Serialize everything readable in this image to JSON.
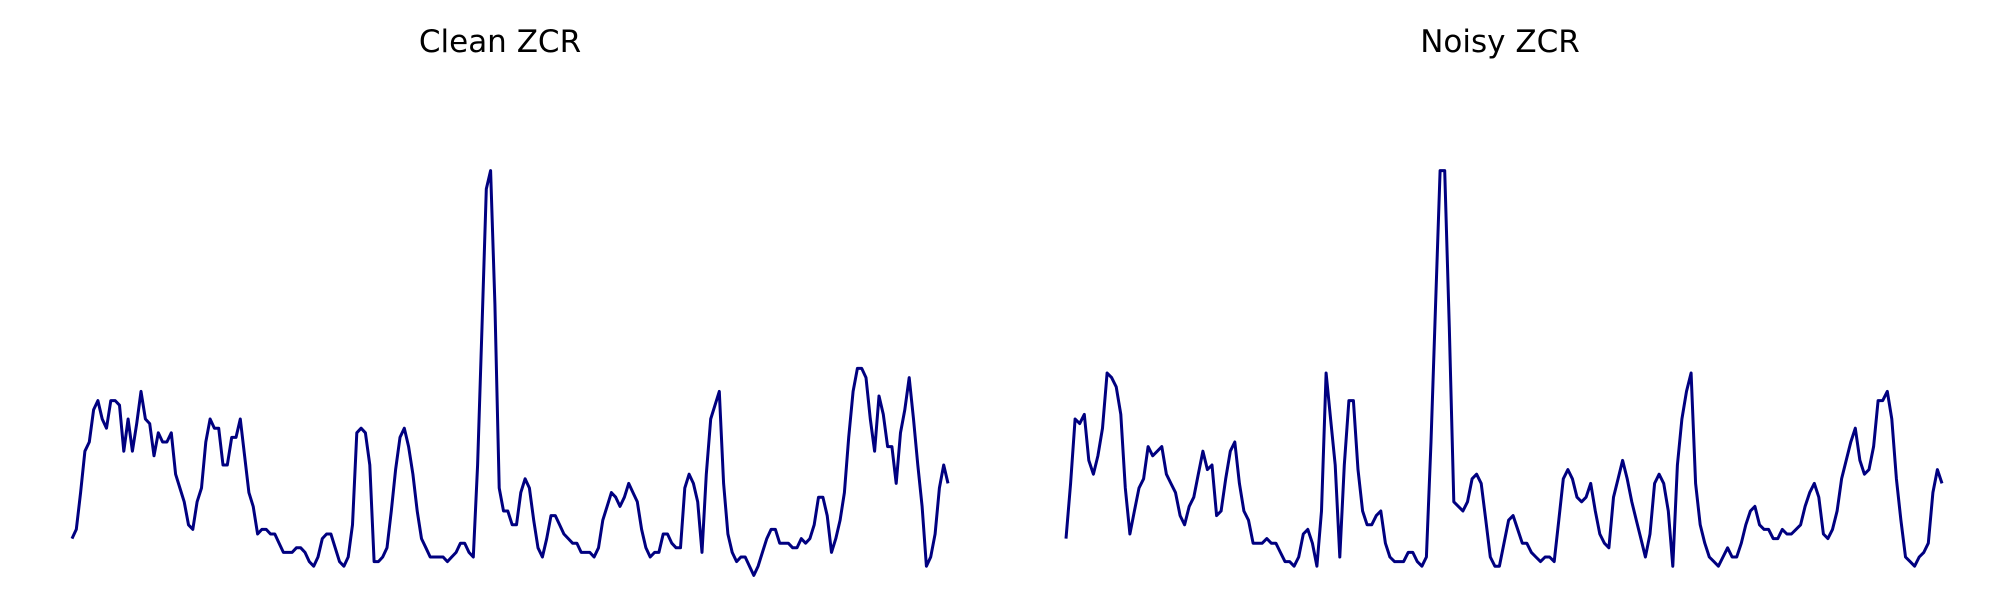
{
  "chart_data": [
    {
      "type": "line",
      "title": "Clean ZCR",
      "xlabel": "",
      "ylabel": "",
      "axes_visible": false,
      "grid": false,
      "color": "#000080",
      "ylim": [
        0,
        100
      ],
      "series": [
        {
          "values": [
            4,
            6,
            14,
            23,
            25,
            32,
            34,
            30,
            28,
            34,
            34,
            33,
            23,
            30,
            23,
            29,
            36,
            30,
            29,
            22,
            27,
            25,
            25,
            27,
            18,
            15,
            12,
            7,
            6,
            12,
            15,
            25,
            30,
            28,
            28,
            20,
            20,
            26,
            26,
            30,
            22,
            14,
            11,
            5,
            6,
            6,
            5,
            5,
            3,
            1,
            1,
            1,
            2,
            2,
            1,
            -1,
            -2,
            0,
            4,
            5,
            5,
            2,
            -1,
            -2,
            0,
            7,
            27,
            28,
            27,
            20,
            -1,
            -1,
            0,
            2,
            10,
            19,
            26,
            28,
            24,
            18,
            10,
            4,
            2,
            0,
            0,
            0,
            0,
            -1,
            0,
            1,
            3,
            3,
            1,
            0,
            20,
            50,
            80,
            84,
            55,
            15,
            10,
            10,
            7,
            7,
            14,
            17,
            15,
            8,
            2,
            0,
            4,
            9,
            9,
            7,
            5,
            4,
            3,
            3,
            1,
            1,
            1,
            0,
            2,
            8,
            11,
            14,
            13,
            11,
            13,
            16,
            14,
            12,
            6,
            2,
            0,
            1,
            1,
            5,
            5,
            3,
            2,
            2,
            15,
            18,
            16,
            12,
            1,
            18,
            30,
            33,
            36,
            16,
            5,
            1,
            -1,
            0,
            0,
            -2,
            -4,
            -2,
            1,
            4,
            6,
            6,
            3,
            3,
            3,
            2,
            2,
            4,
            3,
            4,
            7,
            13,
            13,
            9,
            1,
            4,
            8,
            14,
            26,
            36,
            41,
            41,
            39,
            30,
            23,
            35,
            31,
            24,
            24,
            16,
            27,
            32,
            39,
            30,
            20,
            11,
            -2,
            0,
            5,
            15,
            20,
            16
          ]
        }
      ]
    },
    {
      "type": "line",
      "title": "Noisy ZCR",
      "xlabel": "",
      "ylabel": "",
      "axes_visible": false,
      "grid": false,
      "color": "#000080",
      "ylim": [
        0,
        100
      ],
      "series": [
        {
          "values": [
            4,
            16,
            30,
            29,
            31,
            21,
            18,
            22,
            28,
            40,
            39,
            37,
            31,
            15,
            5,
            10,
            15,
            17,
            24,
            22,
            23,
            24,
            18,
            16,
            14,
            9,
            7,
            11,
            13,
            18,
            23,
            19,
            20,
            9,
            10,
            17,
            23,
            25,
            16,
            10,
            8,
            3,
            3,
            3,
            4,
            3,
            3,
            1,
            -1,
            -1,
            -2,
            0,
            5,
            6,
            3,
            -2,
            10,
            40,
            30,
            20,
            0,
            20,
            34,
            34,
            19,
            10,
            7,
            7,
            9,
            10,
            3,
            0,
            -1,
            -1,
            -1,
            1,
            1,
            -1,
            -2,
            0,
            25,
            55,
            84,
            84,
            50,
            12,
            11,
            10,
            12,
            17,
            18,
            16,
            8,
            0,
            -2,
            -2,
            3,
            8,
            9,
            6,
            3,
            3,
            1,
            0,
            -1,
            0,
            0,
            -1,
            8,
            17,
            19,
            17,
            13,
            12,
            13,
            16,
            10,
            5,
            3,
            2,
            13,
            17,
            21,
            17,
            12,
            8,
            4,
            0,
            5,
            16,
            18,
            16,
            10,
            -2,
            20,
            30,
            36,
            40,
            16,
            7,
            3,
            0,
            -1,
            -2,
            0,
            2,
            0,
            0,
            3,
            7,
            10,
            11,
            7,
            6,
            6,
            4,
            4,
            6,
            5,
            5,
            6,
            7,
            11,
            14,
            16,
            13,
            5,
            4,
            6,
            10,
            17,
            21,
            25,
            28,
            21,
            18,
            19,
            24,
            34,
            34,
            36,
            30,
            17,
            8,
            0,
            -1,
            -2,
            0,
            1,
            3,
            14,
            19,
            16
          ]
        }
      ]
    }
  ]
}
